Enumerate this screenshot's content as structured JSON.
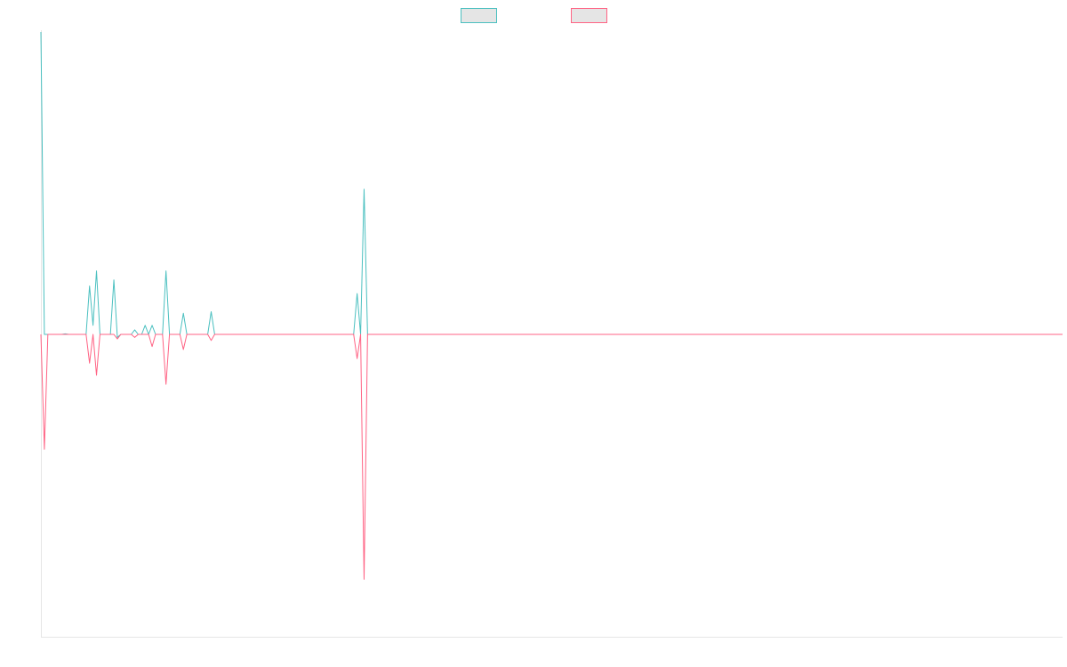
{
  "chart_data": {
    "type": "line",
    "title": "",
    "xlabel": "",
    "ylabel": "",
    "grid": false,
    "legend_position": "top-center",
    "ylim": [
      -100,
      100
    ],
    "series": [
      {
        "color": "#4bc0c0",
        "fill": "#e5e5e5",
        "data": [
          [
            0,
            100
          ],
          [
            1,
            0
          ],
          [
            2,
            0
          ],
          [
            3,
            0
          ],
          [
            4,
            0
          ],
          [
            5,
            0
          ],
          [
            6,
            0
          ],
          [
            7,
            0.2
          ],
          [
            8,
            0
          ],
          [
            9,
            0
          ],
          [
            10,
            0
          ],
          [
            11,
            0
          ],
          [
            12,
            0
          ],
          [
            13,
            0
          ],
          [
            14,
            16
          ],
          [
            15,
            3
          ],
          [
            16,
            21
          ],
          [
            17,
            0
          ],
          [
            18,
            0
          ],
          [
            19,
            0
          ],
          [
            20,
            0
          ],
          [
            21,
            18
          ],
          [
            22,
            -1
          ],
          [
            23,
            0
          ],
          [
            24,
            0
          ],
          [
            25,
            0
          ],
          [
            26,
            0
          ],
          [
            27,
            1.5
          ],
          [
            28,
            0
          ],
          [
            29,
            0
          ],
          [
            30,
            3
          ],
          [
            31,
            0
          ],
          [
            32,
            3
          ],
          [
            33,
            0
          ],
          [
            34,
            0
          ],
          [
            35,
            0
          ],
          [
            36,
            21
          ],
          [
            37,
            0
          ],
          [
            38,
            0
          ],
          [
            39,
            0
          ],
          [
            40,
            0
          ],
          [
            41,
            7
          ],
          [
            42,
            0
          ],
          [
            43,
            0
          ],
          [
            44,
            0
          ],
          [
            45,
            0
          ],
          [
            46,
            0
          ],
          [
            47,
            0
          ],
          [
            48,
            0
          ],
          [
            49,
            7.5
          ],
          [
            50,
            0
          ],
          [
            90,
            0
          ],
          [
            91,
            13.5
          ],
          [
            92,
            0
          ],
          [
            93,
            48
          ],
          [
            94,
            0
          ],
          [
            294,
            0
          ]
        ]
      },
      {
        "color": "#ff6384",
        "fill": "#e5e5e5",
        "data": [
          [
            0,
            0
          ],
          [
            1,
            -38
          ],
          [
            2,
            0
          ],
          [
            3,
            0
          ],
          [
            4,
            0
          ],
          [
            5,
            0
          ],
          [
            6,
            0
          ],
          [
            7,
            0
          ],
          [
            8,
            0
          ],
          [
            9,
            0
          ],
          [
            10,
            0
          ],
          [
            11,
            0
          ],
          [
            12,
            0
          ],
          [
            13,
            0
          ],
          [
            14,
            -9.5
          ],
          [
            15,
            0
          ],
          [
            16,
            -13.5
          ],
          [
            17,
            0
          ],
          [
            18,
            0
          ],
          [
            19,
            0
          ],
          [
            20,
            0
          ],
          [
            21,
            0
          ],
          [
            22,
            -1.5
          ],
          [
            23,
            0
          ],
          [
            24,
            0
          ],
          [
            25,
            0
          ],
          [
            26,
            0
          ],
          [
            27,
            -1
          ],
          [
            28,
            0
          ],
          [
            29,
            0
          ],
          [
            30,
            0
          ],
          [
            31,
            0
          ],
          [
            32,
            -4
          ],
          [
            33,
            0
          ],
          [
            34,
            0
          ],
          [
            35,
            0
          ],
          [
            36,
            -16.5
          ],
          [
            37,
            0
          ],
          [
            38,
            0
          ],
          [
            39,
            0
          ],
          [
            40,
            0
          ],
          [
            41,
            -5
          ],
          [
            42,
            0
          ],
          [
            43,
            0
          ],
          [
            44,
            0
          ],
          [
            45,
            0
          ],
          [
            46,
            0
          ],
          [
            47,
            0
          ],
          [
            48,
            0
          ],
          [
            49,
            -2
          ],
          [
            50,
            0
          ],
          [
            90,
            0
          ],
          [
            91,
            -8
          ],
          [
            92,
            0
          ],
          [
            93,
            -81
          ],
          [
            94,
            0
          ],
          [
            294,
            0
          ]
        ]
      }
    ]
  }
}
